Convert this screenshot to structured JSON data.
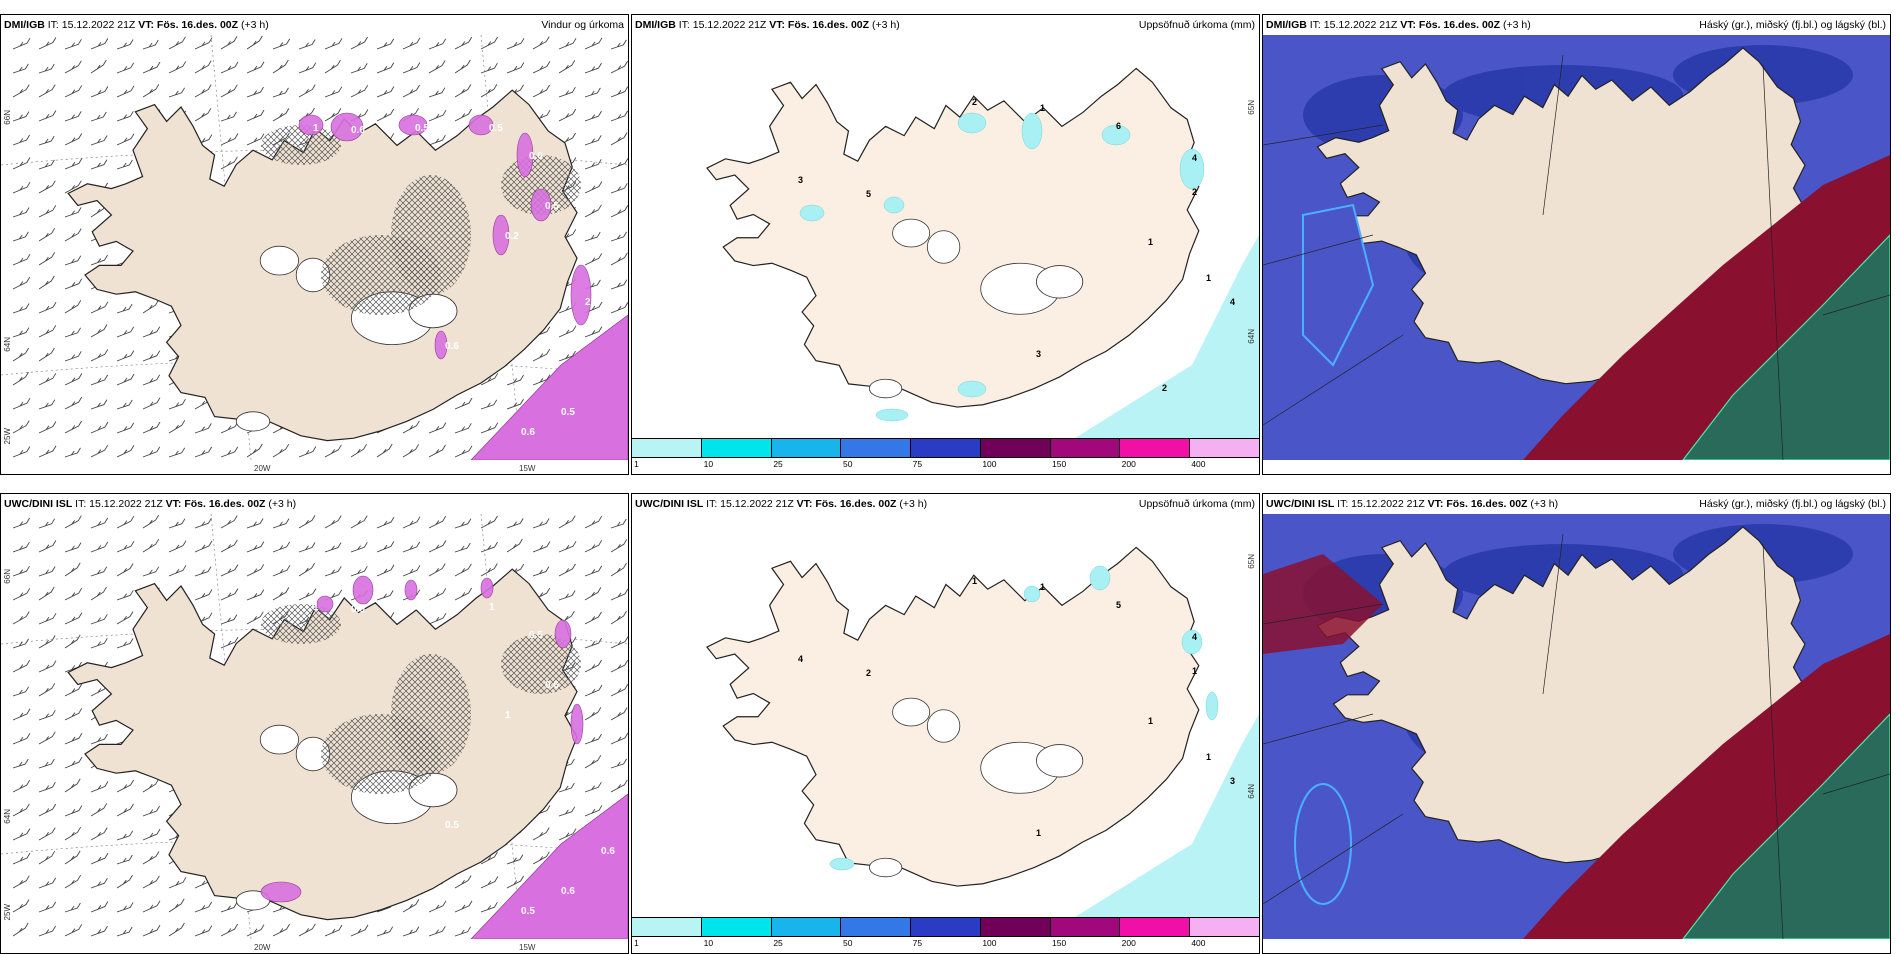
{
  "panels": [
    {
      "model": "DMI/IGB",
      "it": "IT: 15.12.2022 21Z",
      "vt": "VT: Fös. 16.des. 00Z",
      "lead": "(+3 h)",
      "right": "Vindur og úrkoma",
      "labels": {
        "lat_a": "66N",
        "lat_b": "64N",
        "lat_c": "25W",
        "lon_a": "20W",
        "lon_b": "15W"
      },
      "values": [
        "1",
        "0.6",
        "0.5",
        "0.5",
        "0.6",
        "0.5",
        "0.2",
        "0.6",
        "2",
        "0.6",
        "0.5"
      ]
    },
    {
      "model": "DMI/IGB",
      "it": "IT: 15.12.2022 21Z",
      "vt": "VT: Fös. 16.des. 00Z",
      "lead": "(+3 h)",
      "right": "Uppsöfnuð úrkoma (mm)",
      "labels": {
        "lat_a": "65N",
        "lat_b": "64N"
      },
      "values": [
        "2",
        "1",
        "6",
        "4",
        "3",
        "5",
        "2",
        "1",
        "1",
        "3",
        "4",
        "2"
      ]
    },
    {
      "model": "DMI/IGB",
      "it": "IT: 15.12.2022 21Z",
      "vt": "VT: Fös. 16.des. 00Z",
      "lead": "(+3 h)",
      "right": "Háský (gr.), miðský (fj.bl.) og lágský (bl.)"
    },
    {
      "model": "UWC/DINI ISL",
      "it": "IT: 15.12.2022 21Z",
      "vt": "VT: Fös. 16.des. 00Z",
      "lead": "(+3 h)",
      "right": "",
      "labels": {
        "lat_a": "66N",
        "lat_b": "64N",
        "lat_c": "25W",
        "lon_a": "20W",
        "lon_b": "15W"
      },
      "values": [
        "1",
        "0.5",
        "0.5",
        "1",
        "0.5",
        "0.6",
        "1",
        "0.5",
        "0.7",
        "0.5",
        "0.6",
        "0.6"
      ]
    },
    {
      "model": "UWC/DINI ISL",
      "it": "IT: 15.12.2022 21Z",
      "vt": "VT: Fös. 16.des. 00Z",
      "lead": "(+3 h)",
      "right": "Uppsöfnuð úrkoma (mm)",
      "labels": {
        "lat_a": "65N",
        "lat_b": "64N"
      },
      "values": [
        "1",
        "1",
        "5",
        "4",
        "4",
        "2",
        "1",
        "1",
        "1",
        "1",
        "3"
      ]
    },
    {
      "model": "UWC/DINI ISL",
      "it": "IT: 15.12.2022 21Z",
      "vt": "VT: Fös. 16.des. 00Z",
      "lead": "(+3 h)",
      "right": "Háský (gr.), miðský (fj.bl.) og lágský (bl.)"
    }
  ],
  "precip_legend": {
    "ticks": [
      "1",
      "10",
      "25",
      "50",
      "75",
      "100",
      "150",
      "200",
      "400"
    ],
    "colors": [
      "#b8f4f4",
      "#00e4ec",
      "#18b4ec",
      "#3478e8",
      "#2a3cc4",
      "#700058",
      "#a0087c",
      "#f010a8",
      "#f4b0f0"
    ]
  },
  "colors": {
    "land": "#efe2d2",
    "land_light": "#fbeee2",
    "precip_wind": "#d870e0",
    "cyan": "#a8f0f4",
    "high": "#4a56c8",
    "mid": "#2838a8",
    "low": "#8a1030",
    "green": "#2a6a5a"
  }
}
